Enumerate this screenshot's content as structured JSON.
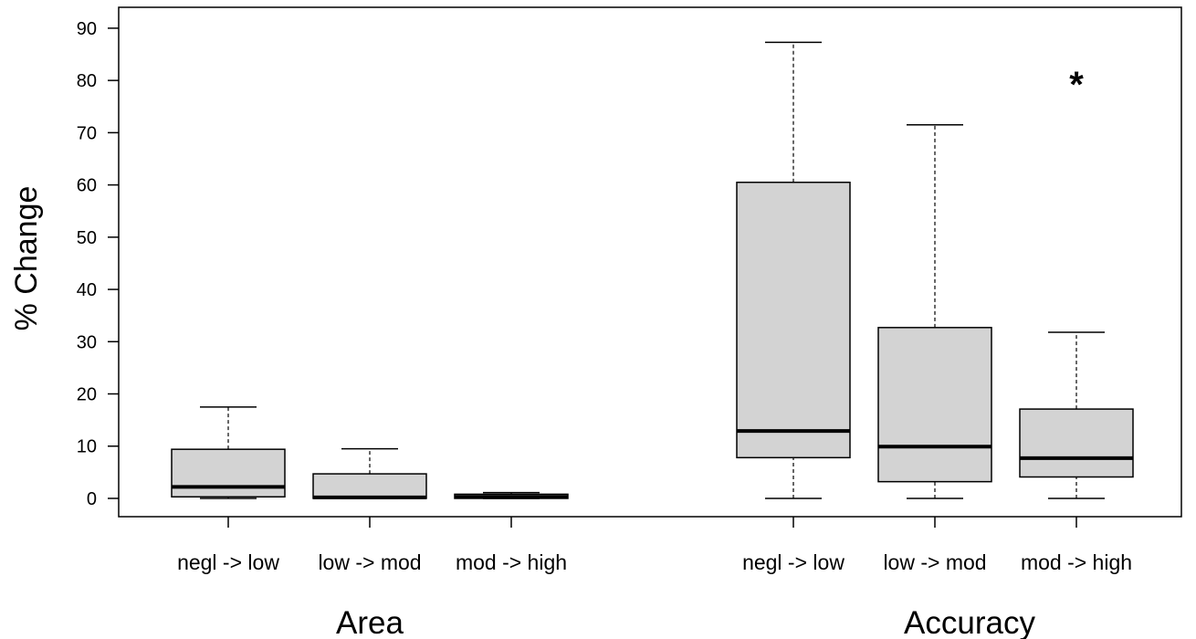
{
  "chart_data": {
    "type": "box",
    "ylabel": "% Change",
    "ylim": [
      -3.5,
      94
    ],
    "yticks": [
      0,
      10,
      20,
      30,
      40,
      50,
      60,
      70,
      80,
      90
    ],
    "groups": [
      "Area",
      "Accuracy"
    ],
    "categories": [
      "negl -> low",
      "low -> mod",
      "mod -> high",
      "negl -> low",
      "low -> mod",
      "mod -> high"
    ],
    "boxes": [
      {
        "group": "Area",
        "category": "negl -> low",
        "min": 0,
        "q1": 0.3,
        "median": 2.2,
        "q3": 9.4,
        "max": 17.5
      },
      {
        "group": "Area",
        "category": "low -> mod",
        "min": 0,
        "q1": 0,
        "median": 0.2,
        "q3": 4.7,
        "max": 9.5
      },
      {
        "group": "Area",
        "category": "mod -> high",
        "min": 0,
        "q1": 0,
        "median": 0.3,
        "q3": 0.8,
        "max": 1.1
      },
      {
        "group": "Accuracy",
        "category": "negl -> low",
        "min": 0,
        "q1": 7.8,
        "median": 12.9,
        "q3": 60.5,
        "max": 87.3
      },
      {
        "group": "Accuracy",
        "category": "low -> mod",
        "min": 0,
        "q1": 3.2,
        "median": 9.9,
        "q3": 32.7,
        "max": 71.5
      },
      {
        "group": "Accuracy",
        "category": "mod -> high",
        "min": 0,
        "q1": 4.1,
        "median": 7.7,
        "q3": 17.1,
        "max": 31.8
      }
    ],
    "annotations": [
      {
        "text": "*",
        "category_index": 5,
        "y": 80
      }
    ],
    "box_fill": "#d3d3d3",
    "line_color": "#000000",
    "grid": false,
    "legend": "none"
  }
}
